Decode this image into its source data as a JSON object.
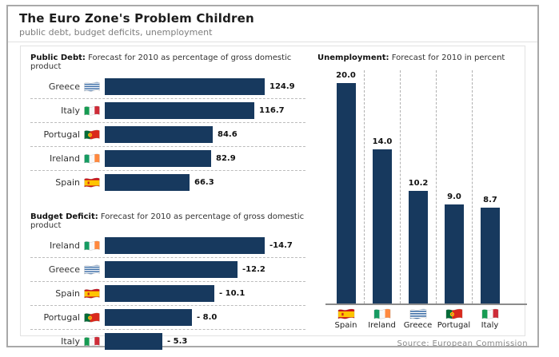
{
  "page": {
    "title": "The Euro Zone's Problem Children",
    "subtitle": "public debt, budget deficits, unemployment",
    "source": "Source: European Commission"
  },
  "colors": {
    "bar": "#17395e",
    "frame_border": "#a9a9a9",
    "inner_border": "#e2e2e2",
    "dashed_grid": "#b0b0b0",
    "subtitle_text": "#7d7d7d",
    "source_text": "#8a8a8a"
  },
  "chart_data": [
    {
      "id": "public_debt",
      "type": "bar",
      "orientation": "horizontal",
      "title_bold": "Public Debt:",
      "title_rest": " Forecast for 2010 as percentage of gross domestic product",
      "categories": [
        "Greece",
        "Italy",
        "Portugal",
        "Ireland",
        "Spain"
      ],
      "values": [
        124.9,
        116.7,
        84.6,
        82.9,
        66.3
      ],
      "value_labels": [
        "124.9",
        "116.7",
        "84.6",
        "82.9",
        "66.3"
      ],
      "flags": [
        "greece",
        "italy",
        "portugal",
        "ireland",
        "spain"
      ],
      "xlim": [
        0,
        124.9
      ],
      "grid": "dashed-row-separators",
      "legend": "none"
    },
    {
      "id": "budget_deficit",
      "type": "bar",
      "orientation": "horizontal",
      "title_bold": "Budget Deficit:",
      "title_rest": " Forecast for 2010 as percentage of gross domestic product",
      "categories": [
        "Ireland",
        "Greece",
        "Spain",
        "Portugal",
        "Italy"
      ],
      "values": [
        -14.7,
        -12.2,
        -10.1,
        -8.0,
        -5.3
      ],
      "value_labels": [
        "-14.7",
        "-12.2",
        "- 10.1",
        "- 8.0",
        "- 5.3"
      ],
      "flags": [
        "ireland",
        "greece",
        "spain",
        "portugal",
        "italy"
      ],
      "xlim": [
        0,
        14.7
      ],
      "grid": "dashed-row-separators",
      "legend": "none"
    },
    {
      "id": "unemployment",
      "type": "bar",
      "orientation": "vertical",
      "title_bold": "Unemployment:",
      "title_rest": " Forecast for 2010 in percent",
      "categories": [
        "Spain",
        "Ireland",
        "Greece",
        "Portugal",
        "Italy"
      ],
      "values": [
        20.0,
        14.0,
        10.2,
        9.0,
        8.7
      ],
      "value_labels": [
        "20.0",
        "14.0",
        "10.2",
        "9.0",
        "8.7"
      ],
      "flags": [
        "spain",
        "ireland",
        "greece",
        "portugal",
        "italy"
      ],
      "ylim": [
        0,
        20
      ],
      "grid": "dashed-vertical-between-bars",
      "legend": "none"
    }
  ],
  "flags": {
    "greece": {
      "blue": "#3e6fa8",
      "white": "#ffffff"
    },
    "italy": {
      "green": "#169b52",
      "white": "#f8f8f8",
      "red": "#ce2b37"
    },
    "ireland": {
      "green": "#169b62",
      "white": "#f8f8f8",
      "orange": "#ff883e"
    },
    "portugal": {
      "green": "#046a38",
      "red": "#da291c",
      "yellow": "#ffd800"
    },
    "spain": {
      "red": "#c60b1e",
      "yellow": "#ffc400"
    }
  }
}
